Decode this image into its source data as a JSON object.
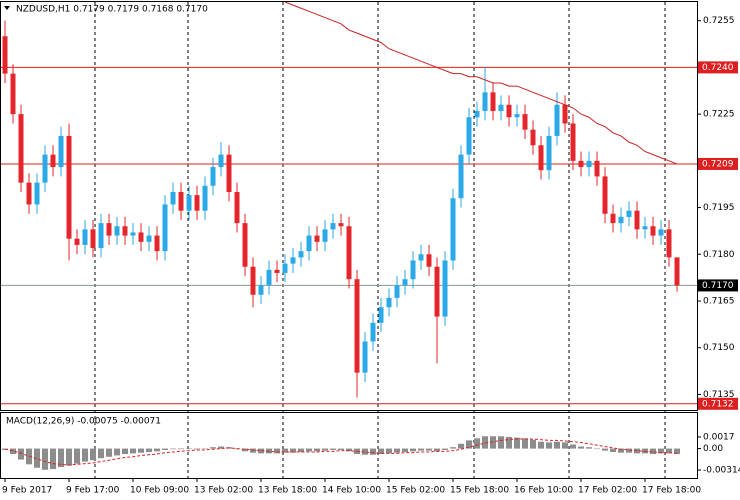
{
  "chart_data": [
    {
      "type": "candlestick",
      "title": "NZDUSD,H1  0.7179 0.7179 0.7168 0.7170",
      "categories": [
        "9 Feb 2017",
        null,
        null,
        null,
        null,
        null,
        null,
        null,
        "9 Feb 17:00",
        null,
        null,
        null,
        null,
        null,
        null,
        null,
        "10 Feb 09:00",
        null,
        null,
        null,
        null,
        null,
        null,
        null,
        "13 Feb 02:00",
        null,
        null,
        null,
        null,
        null,
        null,
        null,
        "13 Feb 18:00",
        null,
        null,
        null,
        null,
        null,
        null,
        null,
        "14 Feb 10:00",
        null,
        null,
        null,
        null,
        null,
        null,
        null,
        "15 Feb 02:00",
        null,
        null,
        null,
        null,
        null,
        null,
        null,
        "15 Feb 18:00",
        null,
        null,
        null,
        null,
        null,
        null,
        null,
        "16 Feb 10:00",
        null,
        null,
        null,
        null,
        null,
        null,
        null,
        "17 Feb 02:00",
        null,
        null,
        null,
        null,
        null,
        null,
        null,
        "17 Feb 18:00",
        null,
        null,
        null,
        null
      ],
      "open": [
        0.725,
        0.7238,
        0.7225,
        0.7203,
        0.7196,
        0.7203,
        0.7212,
        0.7208,
        0.7218,
        0.7185,
        0.7183,
        0.7188,
        0.7182,
        0.719,
        0.7186,
        0.7189,
        0.7186,
        0.7187,
        0.7184,
        0.7186,
        0.7181,
        0.7196,
        0.72,
        0.7194,
        0.7199,
        0.7194,
        0.7202,
        0.7208,
        0.7212,
        0.72,
        0.719,
        0.7176,
        0.7167,
        0.717,
        0.7175,
        0.7174,
        0.7177,
        0.7179,
        0.7181,
        0.7186,
        0.7184,
        0.7188,
        0.719,
        0.7189,
        0.7172,
        0.7142,
        0.7152,
        0.7158,
        0.7163,
        0.7166,
        0.717,
        0.7172,
        0.7178,
        0.718,
        0.7176,
        0.716,
        0.7178,
        0.7198,
        0.7212,
        0.7224,
        0.7226,
        0.7232,
        0.7226,
        0.7228,
        0.7224,
        0.7225,
        0.722,
        0.7215,
        0.7207,
        0.7218,
        0.7228,
        0.7222,
        0.721,
        0.7208,
        0.721,
        0.7205,
        0.7193,
        0.719,
        0.7192,
        0.7194,
        0.7188,
        0.7189,
        0.7186,
        0.7188,
        0.7179
      ],
      "high": [
        0.7255,
        0.7241,
        0.7228,
        0.7206,
        0.7206,
        0.7215,
        0.7215,
        0.7221,
        0.7222,
        0.7188,
        0.7191,
        0.7191,
        0.7193,
        0.7193,
        0.7192,
        0.7192,
        0.719,
        0.719,
        0.7189,
        0.7189,
        0.7199,
        0.7203,
        0.7203,
        0.7202,
        0.7202,
        0.7205,
        0.7211,
        0.7216,
        0.7215,
        0.7203,
        0.7193,
        0.7179,
        0.7173,
        0.7178,
        0.7178,
        0.718,
        0.7182,
        0.7184,
        0.7189,
        0.7189,
        0.7191,
        0.7193,
        0.7193,
        0.7192,
        0.7175,
        0.7155,
        0.7161,
        0.7166,
        0.7169,
        0.7173,
        0.7175,
        0.7181,
        0.7183,
        0.7183,
        0.7179,
        0.7181,
        0.7201,
        0.7215,
        0.7227,
        0.7229,
        0.724,
        0.7235,
        0.7231,
        0.7231,
        0.7228,
        0.7228,
        0.7223,
        0.7218,
        0.7221,
        0.7232,
        0.7231,
        0.7225,
        0.7213,
        0.7213,
        0.7213,
        0.7208,
        0.7196,
        0.7195,
        0.7197,
        0.7197,
        0.7192,
        0.7192,
        0.7191,
        0.7191,
        0.7179
      ],
      "low": [
        0.7235,
        0.7222,
        0.72,
        0.7193,
        0.7193,
        0.72,
        0.7205,
        0.7205,
        0.7178,
        0.718,
        0.718,
        0.7179,
        0.7179,
        0.7183,
        0.7183,
        0.7183,
        0.7183,
        0.7181,
        0.7181,
        0.7178,
        0.7178,
        0.7193,
        0.7191,
        0.7191,
        0.7191,
        0.7191,
        0.7199,
        0.7205,
        0.7197,
        0.7187,
        0.7173,
        0.7163,
        0.7164,
        0.7167,
        0.7171,
        0.7171,
        0.7174,
        0.7176,
        0.7178,
        0.7181,
        0.7181,
        0.7185,
        0.7186,
        0.7169,
        0.7134,
        0.7139,
        0.7149,
        0.7155,
        0.716,
        0.7163,
        0.7167,
        0.7169,
        0.7175,
        0.7173,
        0.7145,
        0.7157,
        0.7175,
        0.7195,
        0.7209,
        0.7221,
        0.7223,
        0.7223,
        0.7223,
        0.7221,
        0.7221,
        0.7217,
        0.7212,
        0.7204,
        0.7204,
        0.7215,
        0.7219,
        0.7207,
        0.7205,
        0.7205,
        0.7202,
        0.719,
        0.7187,
        0.7187,
        0.7189,
        0.7185,
        0.7185,
        0.7183,
        0.7183,
        0.7176,
        0.7168
      ],
      "close": [
        0.7238,
        0.7225,
        0.7203,
        0.7196,
        0.7203,
        0.7212,
        0.7208,
        0.7218,
        0.7185,
        0.7183,
        0.7188,
        0.7182,
        0.719,
        0.7186,
        0.7189,
        0.7186,
        0.7187,
        0.7184,
        0.7186,
        0.7181,
        0.7196,
        0.72,
        0.7194,
        0.7199,
        0.7194,
        0.7202,
        0.7208,
        0.7212,
        0.72,
        0.719,
        0.7176,
        0.7167,
        0.717,
        0.7175,
        0.7174,
        0.7177,
        0.7179,
        0.7181,
        0.7186,
        0.7184,
        0.7188,
        0.719,
        0.7189,
        0.7172,
        0.7142,
        0.7152,
        0.7158,
        0.7163,
        0.7166,
        0.717,
        0.7172,
        0.7178,
        0.718,
        0.7176,
        0.716,
        0.7178,
        0.7198,
        0.7212,
        0.7224,
        0.7226,
        0.7232,
        0.7226,
        0.7228,
        0.7224,
        0.7225,
        0.722,
        0.7215,
        0.7207,
        0.7218,
        0.7228,
        0.7222,
        0.721,
        0.7208,
        0.721,
        0.7205,
        0.7193,
        0.719,
        0.7192,
        0.7194,
        0.7188,
        0.7189,
        0.7186,
        0.7188,
        0.7179,
        0.717
      ],
      "up_color": "#2aa9e6",
      "down_color": "#e3262b",
      "ma": {
        "color": "#cc2020",
        "values": [
          null,
          null,
          null,
          null,
          null,
          null,
          null,
          null,
          null,
          null,
          null,
          null,
          null,
          null,
          null,
          null,
          null,
          null,
          null,
          null,
          null,
          null,
          null,
          null,
          null,
          null,
          null,
          null,
          null,
          null,
          null,
          null,
          null,
          null,
          null,
          0.7261,
          0.726,
          0.7259,
          0.7258,
          0.7257,
          0.7256,
          0.7255,
          0.7254,
          0.7252,
          0.7251,
          0.725,
          0.7249,
          0.7248,
          0.7246,
          0.7245,
          0.7244,
          0.7243,
          0.7242,
          0.7241,
          0.724,
          0.7239,
          0.7238,
          0.7238,
          0.7237,
          0.7237,
          0.7236,
          0.7235,
          0.7235,
          0.7234,
          0.7234,
          0.7233,
          0.7232,
          0.7231,
          0.723,
          0.7229,
          0.7228,
          0.7227,
          0.7225,
          0.7224,
          0.7222,
          0.7221,
          0.7219,
          0.7218,
          0.7216,
          0.7215,
          0.7213,
          0.7212,
          0.7211,
          0.721,
          0.7209
        ]
      },
      "levels": [
        {
          "value": 0.724,
          "label": "0.7240",
          "color": "#dd1f1f"
        },
        {
          "value": 0.7209,
          "label": "0.7209",
          "color": "#dd1f1f"
        },
        {
          "value": 0.7132,
          "label": "0.7132",
          "color": "#dd1f1f"
        }
      ],
      "current": {
        "value": 0.717,
        "label": "0.7170",
        "color": "#000000"
      },
      "ylim": [
        0.713,
        0.7261
      ],
      "yticks": [
        0.7255,
        0.7225,
        0.7195,
        {
          "value": 0.718,
          "label": "0.7180"
        },
        0.7165,
        {
          "value": 0.715,
          "label": "0.7150"
        },
        0.7135
      ]
    },
    {
      "type": "macd",
      "title": "MACD(12,26,9) -0.00075 -0.00071",
      "color": "#8c8c8c",
      "values": [
        -0.0002,
        -0.0008,
        -0.0016,
        -0.0023,
        -0.0028,
        -0.0031,
        -0.003,
        -0.0027,
        -0.0025,
        -0.0022,
        -0.0019,
        -0.0017,
        -0.0014,
        -0.0012,
        -0.001,
        -0.0008,
        -0.0007,
        -0.0006,
        -0.0005,
        -0.0004,
        -0.0002,
        -0.0001,
        -0.0001,
        0,
        -0.0001,
        0,
        0.0002,
        0.0003,
        0.0002,
        -0.0001,
        -0.0004,
        -0.0006,
        -0.0007,
        -0.0007,
        -0.0007,
        -0.0006,
        -0.0006,
        -0.0005,
        -0.0004,
        -0.0004,
        -0.0003,
        -0.0002,
        -0.0002,
        -0.0004,
        -0.0008,
        -0.0009,
        -0.0009,
        -0.0008,
        -0.0007,
        -0.0006,
        -0.0005,
        -0.0004,
        -0.0003,
        -0.0003,
        -0.0004,
        -0.0002,
        0.0002,
        0.0007,
        0.0012,
        0.0015,
        0.0018,
        0.0018,
        0.0018,
        0.0017,
        0.0016,
        0.0015,
        0.0013,
        0.001,
        0.0009,
        0.001,
        0.0009,
        0.0006,
        0.0003,
        0.0002,
        0,
        -0.0003,
        -0.0005,
        -0.0006,
        -0.0006,
        -0.0007,
        -0.0007,
        -0.0008,
        -0.0007,
        -0.0007,
        -0.0008
      ],
      "signal": {
        "color": "#e02020",
        "values": [
          -0.0001,
          -0.0003,
          -0.0007,
          -0.0011,
          -0.0015,
          -0.0019,
          -0.0022,
          -0.0023,
          -0.0024,
          -0.0023,
          -0.0022,
          -0.0021,
          -0.0019,
          -0.0017,
          -0.0015,
          -0.0013,
          -0.0012,
          -0.001,
          -0.0009,
          -0.0008,
          -0.0006,
          -0.0005,
          -0.0004,
          -0.0003,
          -0.0002,
          -0.0002,
          -0.0001,
          0,
          0.0001,
          0,
          -0.0001,
          -0.0002,
          -0.0003,
          -0.0004,
          -0.0005,
          -0.0005,
          -0.0005,
          -0.0005,
          -0.0005,
          -0.0005,
          -0.0004,
          -0.0004,
          -0.0003,
          -0.0003,
          -0.0004,
          -0.0005,
          -0.0006,
          -0.0007,
          -0.0007,
          -0.0007,
          -0.0006,
          -0.0006,
          -0.0005,
          -0.0005,
          -0.0004,
          -0.0004,
          -0.0003,
          -0.0001,
          0.0002,
          0.0005,
          0.0008,
          0.001,
          0.0012,
          0.0013,
          0.0014,
          0.0014,
          0.0014,
          0.0013,
          0.0012,
          0.0012,
          0.0011,
          0.001,
          0.0009,
          0.0007,
          0.0005,
          0.0003,
          0.0001,
          -0.0001,
          -0.0002,
          -0.0003,
          -0.0004,
          -0.0005,
          -0.0006,
          -0.0006,
          -0.0007
        ]
      },
      "ylim": [
        -0.0043,
        0.0052
      ],
      "yticks": [
        0.0017,
        {
          "value": 0,
          "label": "0.00"
        },
        -0.00314
      ]
    }
  ]
}
